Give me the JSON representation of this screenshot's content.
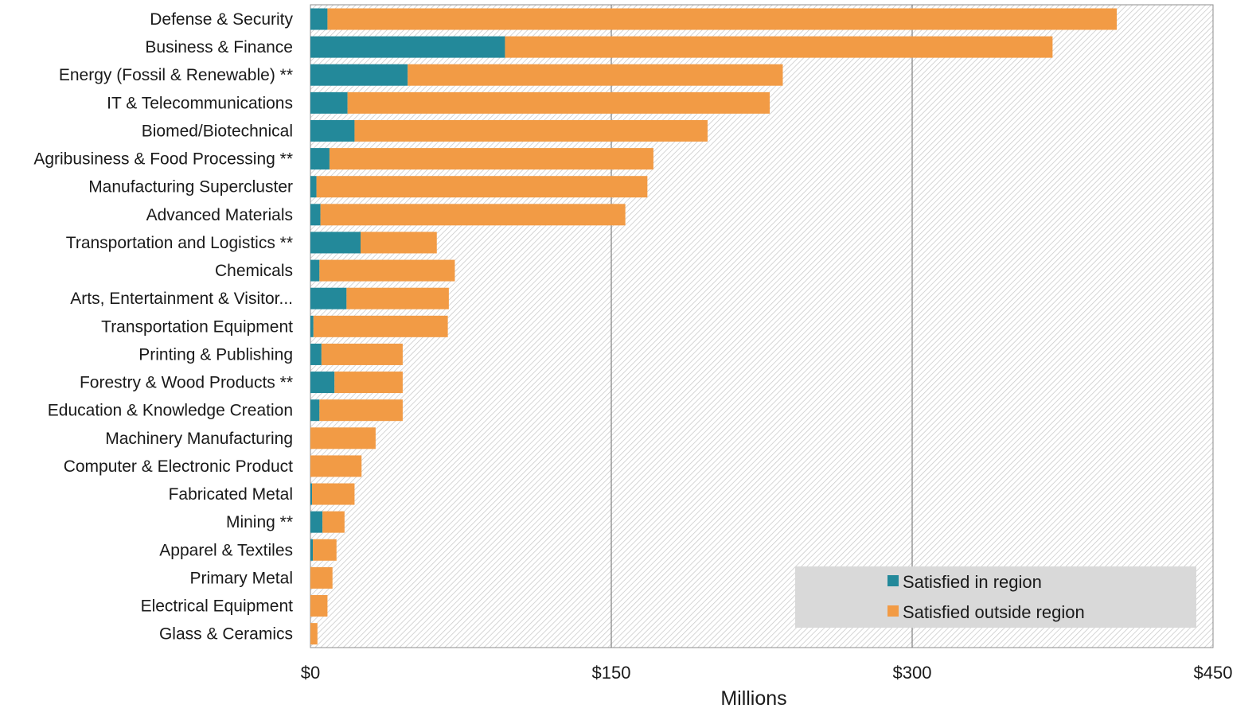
{
  "chart_data": {
    "type": "bar",
    "orientation": "horizontal",
    "stacked": true,
    "categories": [
      "Defense & Security",
      "Business & Finance",
      "Energy (Fossil & Renewable) **",
      "IT & Telecommunications",
      "Biomed/Biotechnical",
      "Agribusiness & Food Processing **",
      "Manufacturing Supercluster",
      "Advanced Materials",
      "Transportation and Logistics **",
      "Chemicals",
      "Arts, Entertainment & Visitor...",
      "Transportation Equipment",
      "Printing & Publishing",
      "Forestry & Wood Products **",
      "Education & Knowledge Creation",
      "Machinery Manufacturing",
      "Computer & Electronic Product",
      "Fabricated Metal",
      "Mining **",
      "Apparel & Textiles",
      "Primary Metal",
      "Electrical Equipment",
      "Glass & Ceramics"
    ],
    "series": [
      {
        "name": "Satisfied in region",
        "color": "#23899a",
        "values": [
          8.5,
          97,
          48.5,
          18.5,
          22,
          9.5,
          3,
          5,
          25,
          4.5,
          18,
          1.5,
          5.5,
          12,
          4.5,
          0,
          0,
          0.8,
          6,
          1.2,
          0,
          0,
          0
        ]
      },
      {
        "name": "Satisfied outside region",
        "color": "#f29b45",
        "values": [
          393.5,
          273,
          187,
          210.5,
          176,
          161.5,
          165,
          152,
          38,
          67.5,
          51,
          67,
          40.5,
          34,
          41.5,
          32.5,
          25.5,
          21.2,
          11,
          11.8,
          11,
          8.5,
          3.5
        ]
      }
    ],
    "x_ticks": [
      "$0",
      "$150",
      "$300",
      "$450"
    ],
    "xlim": [
      0,
      450
    ],
    "xlabel": "Millions",
    "ylabel": "",
    "title": "",
    "grid": "vertical",
    "legend_position": "bottom-right"
  },
  "colors": {
    "in_region": "#23899a",
    "outside_region": "#f29b45",
    "legend_bg": "#d9d9d9",
    "hatch": "#c8c8c8",
    "gridline": "#7f7f7f"
  }
}
